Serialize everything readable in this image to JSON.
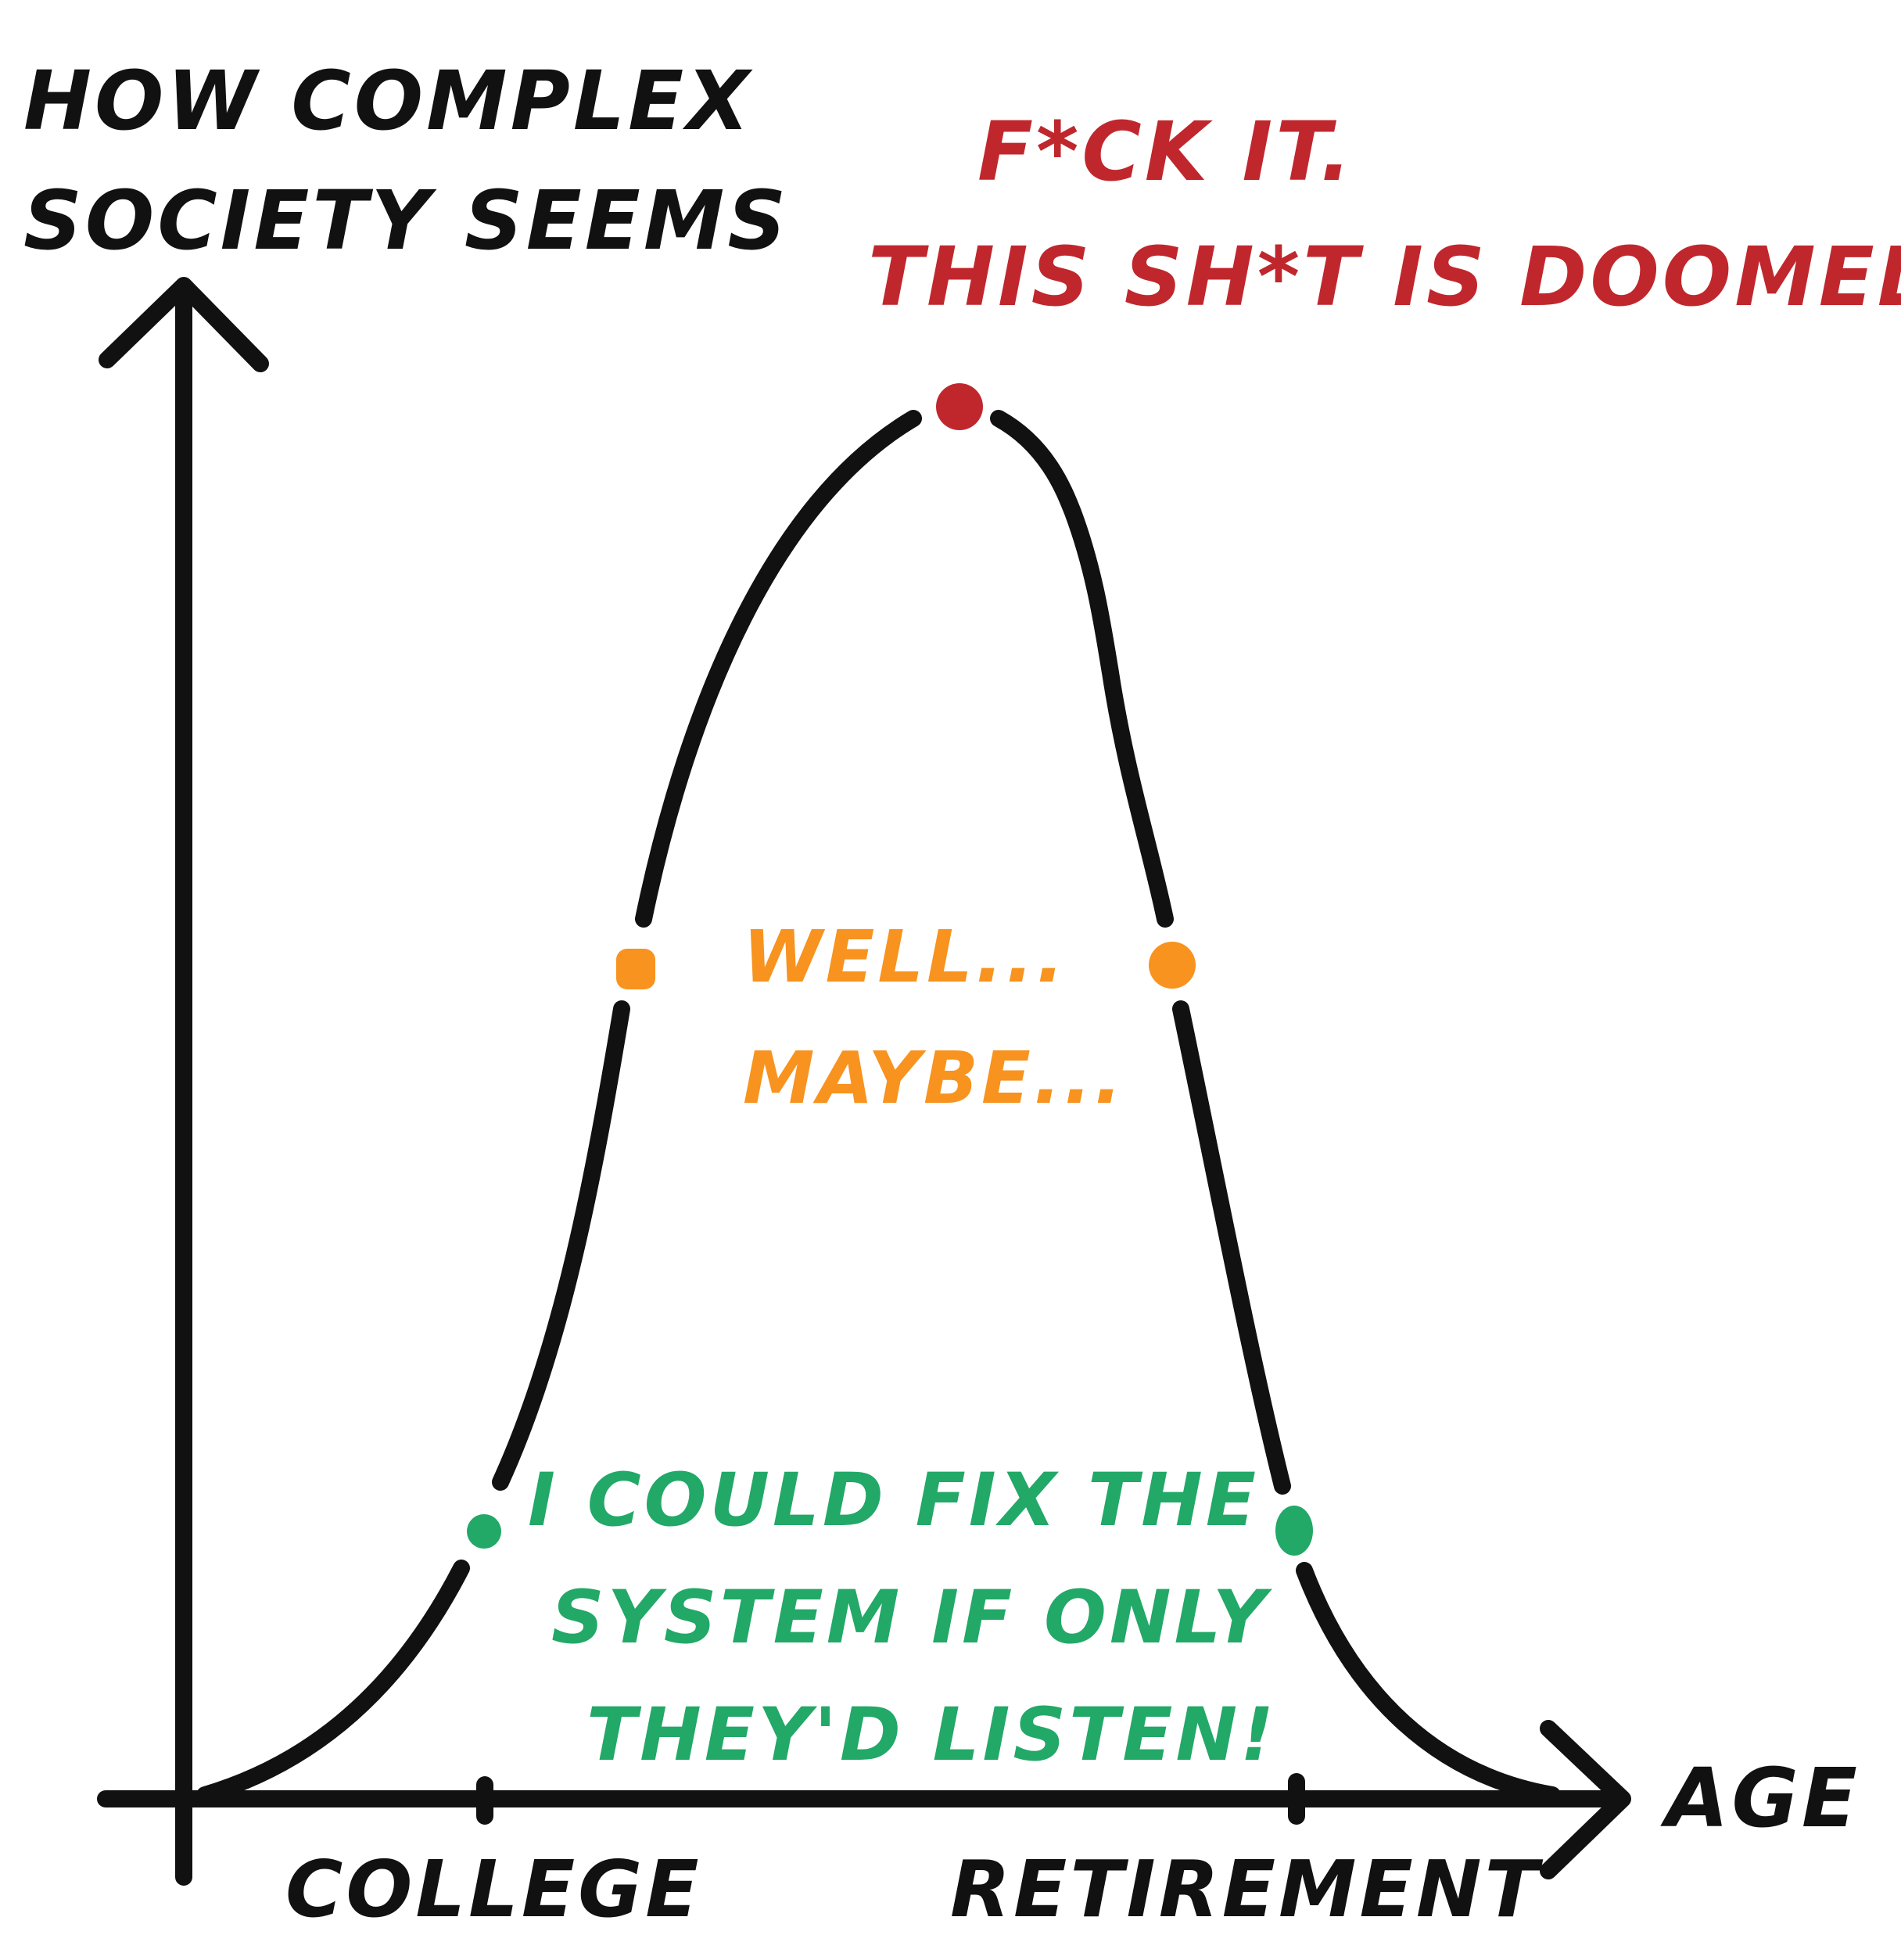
{
  "y_axis_label": [
    "HOW COMPLEX",
    "SOCIETY SEEMS"
  ],
  "x_axis_label": "AGE",
  "x_ticks": [
    "COLLEGE",
    "RETIREMENT"
  ],
  "annotations": {
    "top": [
      "F*CK IT.",
      "THIS SH*T IS DOOMED."
    ],
    "middle": [
      "WELL...",
      "MAYBE..."
    ],
    "bottom": [
      "I COULD FIX THE",
      "SYSTEM IF ONLY",
      "THEY'D LISTEN!"
    ]
  },
  "colors": {
    "ink": "#111111",
    "top": "#c0272d",
    "middle": "#f7931e",
    "bottom": "#22a867"
  }
}
